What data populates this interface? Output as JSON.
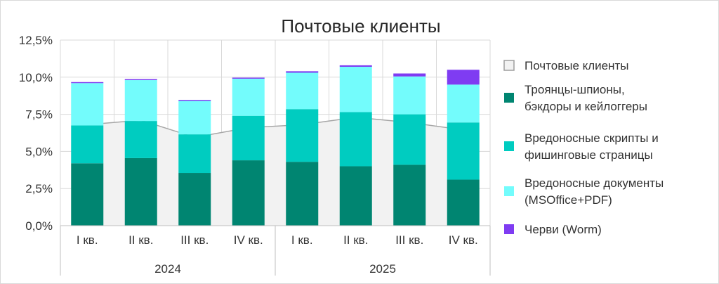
{
  "chart_data": {
    "type": "bar",
    "stacked": true,
    "title": "Почтовые клиенты",
    "xlabel": "",
    "ylabel": "",
    "ylim": [
      0,
      12.5
    ],
    "yticks": [
      "0,0%",
      "2,5%",
      "5,0%",
      "7,5%",
      "10,0%",
      "12,5%"
    ],
    "ytick_values": [
      0,
      2.5,
      5,
      7.5,
      10,
      12.5
    ],
    "categories": [
      "I кв.",
      "II кв.",
      "III кв.",
      "IV кв.",
      "I кв.",
      "II кв.",
      "III кв.",
      "IV кв."
    ],
    "groups": [
      {
        "label": "2024",
        "count": 4
      },
      {
        "label": "2025",
        "count": 4
      }
    ],
    "area": {
      "name": "Почтовые клиенты",
      "color": "#f2f2f2",
      "values": [
        6.8,
        7.1,
        5.95,
        6.6,
        6.8,
        7.3,
        6.95,
        6.45
      ]
    },
    "series": [
      {
        "name": "Троянцы-шпионы, бэкдоры и кейлоггеры",
        "color": "#008571",
        "values": [
          4.2,
          4.55,
          3.55,
          4.4,
          4.3,
          4.0,
          4.1,
          3.1
        ]
      },
      {
        "name": "Вредоносные скрипты и фишинговые страницы",
        "color": "#00ccc0",
        "values": [
          2.55,
          2.5,
          2.6,
          3.0,
          3.55,
          3.65,
          3.4,
          3.85
        ]
      },
      {
        "name": "Вредоносные документы (MSOffice+PDF)",
        "color": "#73fcfc",
        "values": [
          2.85,
          2.75,
          2.25,
          2.5,
          2.45,
          3.05,
          2.55,
          2.55
        ]
      },
      {
        "name": "Черви (Worm)",
        "color": "#7f3cf2",
        "values": [
          0.07,
          0.07,
          0.07,
          0.07,
          0.1,
          0.1,
          0.2,
          1.0
        ]
      }
    ],
    "legend": {
      "placement": "right",
      "entries": [
        {
          "lines": [
            "Почтовые клиенты"
          ],
          "color": "#f2f2f2",
          "outline": "#9e9e9e"
        },
        {
          "lines": [
            "Троянцы-шпионы,",
            "бэкдоры и кейлоггеры"
          ],
          "color": "#008571"
        },
        {
          "lines": [
            "Вредоносные скрипты и",
            "фишинговые страницы"
          ],
          "color": "#00ccc0"
        },
        {
          "lines": [
            "Вредоносные документы",
            "(MSOffice+PDF)"
          ],
          "color": "#73fcfc"
        },
        {
          "lines": [
            "Черви (Worm)"
          ],
          "color": "#7f3cf2"
        }
      ]
    },
    "grid": true
  }
}
